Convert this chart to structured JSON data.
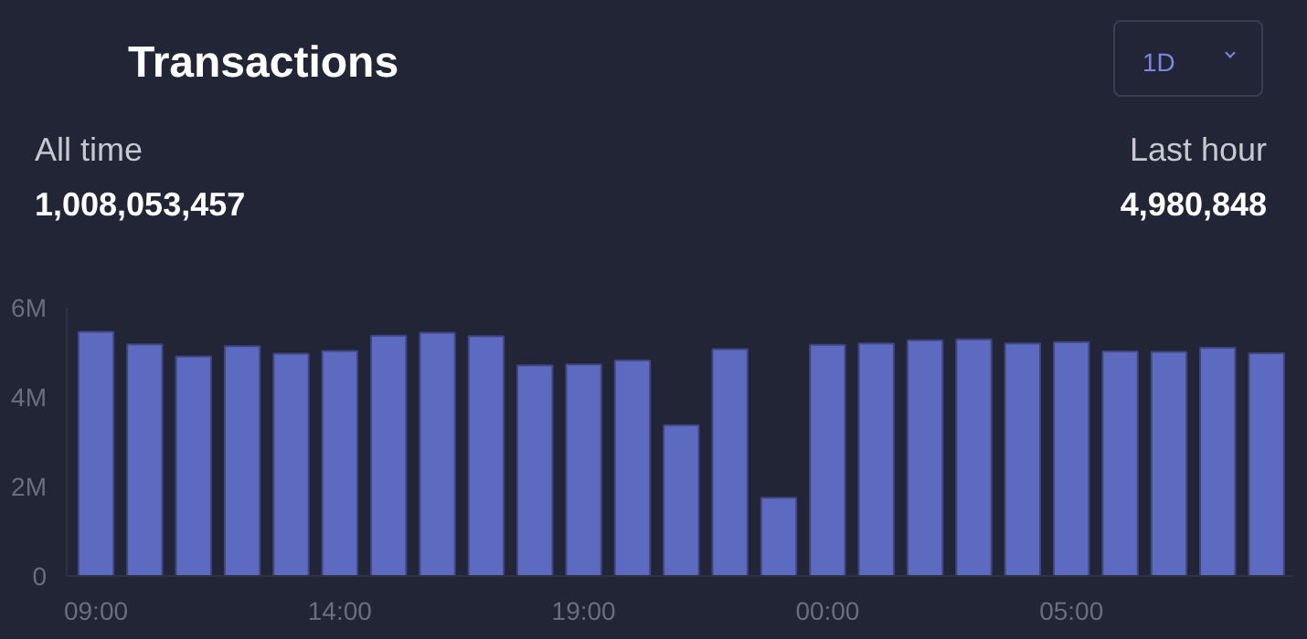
{
  "chart_data": {
    "type": "bar",
    "title": "Transactions",
    "annotations": [
      "All time",
      "1,008,053,457",
      "Last hour",
      "4,980,848",
      "1D"
    ],
    "categories": [
      "09:00",
      null,
      null,
      null,
      null,
      "14:00",
      null,
      null,
      null,
      null,
      "19:00",
      null,
      null,
      null,
      null,
      "00:00",
      null,
      null,
      null,
      null,
      "05:00",
      null,
      null,
      null,
      null
    ],
    "values": [
      5460000,
      5180000,
      4910000,
      5140000,
      4970000,
      5030000,
      5370000,
      5440000,
      5360000,
      4710000,
      4730000,
      4820000,
      3370000,
      5070000,
      1750000,
      5170000,
      5200000,
      5270000,
      5290000,
      5200000,
      5230000,
      5020000,
      5010000,
      5100000,
      4980000
    ],
    "color": "#5c6bc0",
    "ylim": [
      0,
      6000000
    ],
    "yticks": [
      {
        "value": 0,
        "label": "0"
      },
      {
        "value": 2000000,
        "label": "2M"
      },
      {
        "value": 4000000,
        "label": "4M"
      },
      {
        "value": 6000000,
        "label": "6M"
      }
    ],
    "grid": false
  }
}
